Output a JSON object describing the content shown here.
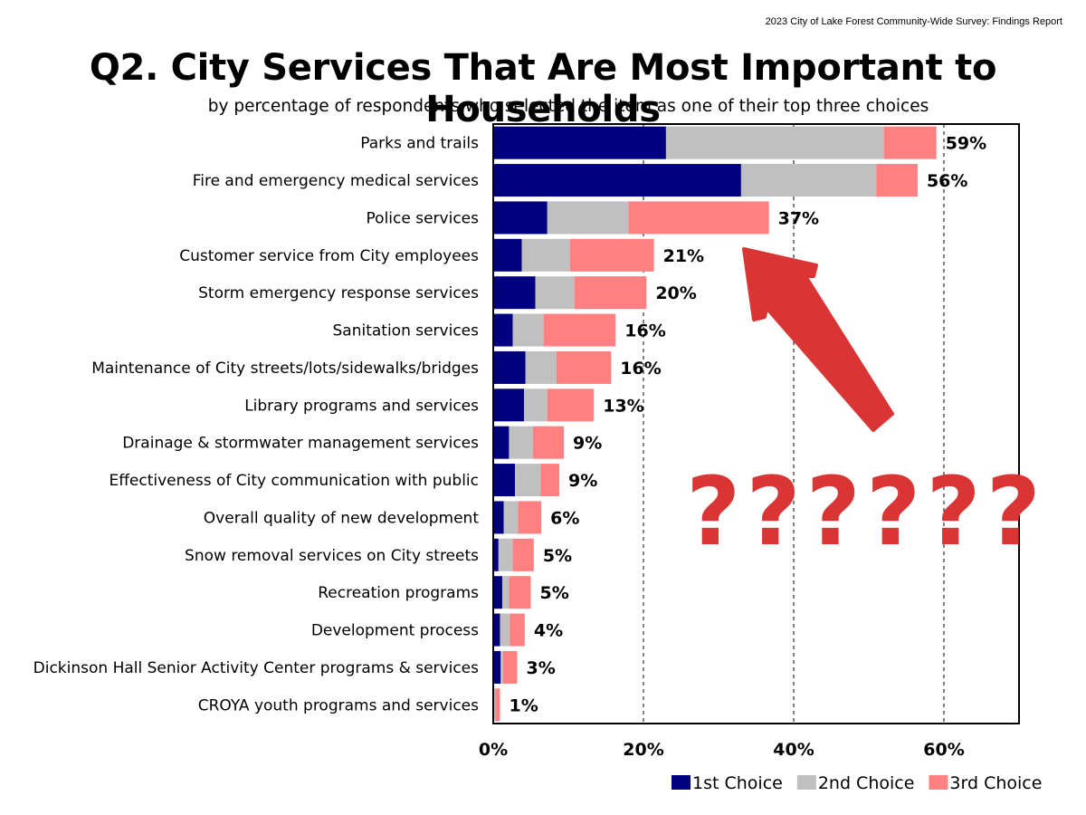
{
  "header": {
    "report": "2023 City of Lake Forest Community-Wide Survey:  Findings Report"
  },
  "chart_data": {
    "type": "bar",
    "orientation": "horizontal",
    "stacked": true,
    "title": "Q2. City Services That Are Most Important to Households",
    "subtitle": "by percentage of respondents who selected the item as one of their top three choices",
    "categories": [
      "Parks and trails",
      "Fire and emergency medical services",
      "Police services",
      "Customer service from City employees",
      "Storm emergency response services",
      "Sanitation services",
      "Maintenance of City streets/lots/sidewalks/bridges",
      "Library programs and services",
      "Drainage & stormwater management services",
      "Effectiveness of City communication with public",
      "Overall quality of new development",
      "Snow removal services on City streets",
      "Recreation programs",
      "Development process",
      "Dickinson Hall Senior Activity Center programs & services",
      "CROYA youth programs and services"
    ],
    "series": [
      {
        "name": "1st Choice",
        "color": "#000080",
        "values": [
          23,
          33,
          7.2,
          3.8,
          5.6,
          2.6,
          4.3,
          4.1,
          2.1,
          2.9,
          1.4,
          0.7,
          1.2,
          0.9,
          1.0,
          0.1
        ]
      },
      {
        "name": "2nd Choice",
        "color": "#c0c0c0",
        "values": [
          29,
          18,
          10.8,
          6.4,
          5.2,
          4.1,
          4.1,
          3.1,
          3.2,
          3.4,
          1.9,
          1.9,
          0.9,
          1.3,
          0.3,
          0.2
        ]
      },
      {
        "name": "3rd Choice",
        "color": "#ff8080",
        "values": [
          7,
          5.5,
          18.7,
          11.2,
          9.6,
          9.6,
          7.3,
          6.2,
          4.1,
          2.5,
          3.1,
          2.8,
          2.9,
          2.0,
          1.9,
          0.6
        ]
      }
    ],
    "data_labels": [
      "59%",
      "56%",
      "37%",
      "21%",
      "20%",
      "16%",
      "16%",
      "13%",
      "9%",
      "9%",
      "6%",
      "5%",
      "5%",
      "4%",
      "3%",
      "1%"
    ],
    "xlim": [
      0,
      70
    ],
    "xticks": [
      0,
      20,
      40,
      60
    ],
    "xtick_labels": [
      "0%",
      "20%",
      "40%",
      "60%"
    ],
    "grid": "vertical dashed at 20%, 40%, 60%",
    "legend_position": "bottom-right"
  },
  "annotation": {
    "arrow_color": "#d93535",
    "question_marks": "??????"
  }
}
